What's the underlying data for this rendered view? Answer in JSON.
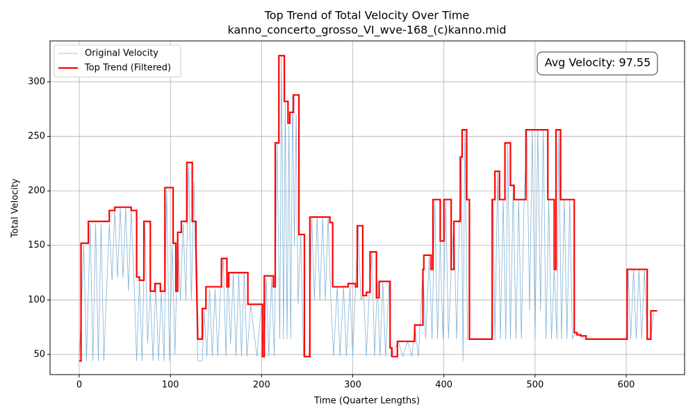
{
  "chart_data": {
    "type": "line",
    "title": "Top Trend of Total Velocity Over Time",
    "subtitle": "kanno_concerto_grosso_VI_wve-168_(c)kanno.mid",
    "xlabel": "Time (Quarter Lengths)",
    "ylabel": "Total Velocity",
    "annotation": "Avg Velocity: 97.55",
    "xlim": [
      -32,
      664
    ],
    "ylim": [
      31.5,
      337.5
    ],
    "xticks": [
      0,
      100,
      200,
      300,
      400,
      500,
      600
    ],
    "yticks": [
      50,
      100,
      150,
      200,
      250,
      300
    ],
    "grid": true,
    "legend": "upper left",
    "series": [
      {
        "name": "Original Velocity",
        "color": "#7fb2d8",
        "width": 0.8,
        "x": [
          0,
          5,
          8,
          12,
          15,
          18,
          21,
          24,
          27,
          30,
          33,
          36,
          39,
          42,
          45,
          48,
          51,
          54,
          57,
          60,
          63,
          66,
          69,
          72,
          75,
          78,
          81,
          84,
          87,
          90,
          93,
          96,
          99,
          102,
          105,
          108,
          111,
          114,
          117,
          120,
          123,
          126,
          128,
          130,
          135,
          137,
          140,
          143,
          146,
          149,
          152,
          155,
          158,
          161,
          163,
          166,
          169,
          172,
          175,
          178,
          181,
          184,
          188,
          195,
          200,
          203,
          205,
          208,
          211,
          214,
          217,
          220,
          222,
          224,
          226,
          228,
          230,
          232,
          234,
          236,
          238,
          240,
          243,
          246,
          252,
          255,
          258,
          261,
          264,
          267,
          270,
          273,
          276,
          279,
          283,
          286,
          290,
          293,
          297,
          300,
          303,
          306,
          309,
          312,
          315,
          318,
          321,
          324,
          327,
          330,
          333,
          336,
          340,
          342,
          350,
          355,
          360,
          365,
          368,
          372,
          377,
          380,
          384,
          387,
          390,
          393,
          396,
          399,
          402,
          405,
          408,
          411,
          414,
          417,
          419,
          421,
          423,
          426,
          430,
          452,
          454,
          456,
          459,
          462,
          465,
          468,
          470,
          473,
          476,
          479,
          482,
          485,
          488,
          491,
          494,
          497,
          500,
          503,
          506,
          509,
          512,
          515,
          518,
          521,
          524,
          526,
          529,
          532,
          535,
          538,
          541,
          544,
          556,
          600,
          602,
          605,
          608,
          611,
          614,
          617,
          620,
          623,
          627,
          630,
          634
        ],
        "values": [
          44,
          150,
          44,
          170,
          44,
          170,
          44,
          170,
          44,
          108,
          170,
          118,
          182,
          120,
          185,
          120,
          185,
          108,
          182,
          120,
          44,
          118,
          44,
          170,
          60,
          108,
          44,
          115,
          44,
          108,
          44,
          200,
          44,
          150,
          50,
          160,
          100,
          170,
          100,
          225,
          100,
          208,
          120,
          44,
          44,
          90,
          48,
          110,
          48,
          110,
          48,
          110,
          138,
          48,
          125,
          60,
          125,
          48,
          125,
          48,
          125,
          48,
          96,
          48,
          96,
          48,
          120,
          48,
          120,
          48,
          244,
          64,
          324,
          64,
          280,
          64,
          260,
          64,
          288,
          150,
          270,
          96,
          160,
          48,
          48,
          176,
          100,
          176,
          100,
          176,
          100,
          176,
          100,
          48,
          112,
          48,
          112,
          48,
          112,
          48,
          112,
          168,
          100,
          104,
          48,
          104,
          144,
          48,
          117,
          48,
          117,
          48,
          117,
          48,
          62,
          48,
          62,
          48,
          77,
          48,
          128,
          64,
          141,
          64,
          192,
          64,
          154,
          64,
          192,
          64,
          128,
          172,
          64,
          172,
          230,
          44,
          256,
          64,
          64,
          64,
          192,
          64,
          218,
          64,
          192,
          64,
          244,
          64,
          205,
          64,
          192,
          64,
          192,
          256,
          90,
          256,
          64,
          256,
          90,
          256,
          64,
          192,
          64,
          128,
          64,
          256,
          64,
          192,
          64,
          192,
          64,
          70,
          64,
          64,
          128,
          64,
          128,
          64,
          128,
          64,
          128,
          64,
          64,
          90,
          90
        ]
      },
      {
        "name": "Top Trend (Filtered)",
        "color": "#ff0000",
        "width": 2.2,
        "x": [
          0,
          2,
          2,
          10,
          10,
          33,
          33,
          39,
          39,
          57,
          57,
          63,
          63,
          66,
          66,
          71,
          71,
          78,
          78,
          83,
          83,
          89,
          89,
          94,
          94,
          103,
          103,
          106,
          106,
          108,
          108,
          112,
          112,
          118,
          118,
          124,
          124,
          128,
          128,
          130,
          135,
          135,
          139,
          139,
          156,
          156,
          162,
          162,
          164,
          164,
          185,
          185,
          201,
          201,
          203,
          203,
          213,
          213,
          215,
          215,
          219,
          219,
          225,
          225,
          229,
          229,
          231,
          231,
          235,
          235,
          241,
          241,
          247,
          247,
          253,
          253,
          275,
          275,
          278,
          278,
          295,
          295,
          303,
          303,
          305,
          305,
          311,
          311,
          315,
          315,
          319,
          319,
          326,
          326,
          329,
          329,
          341,
          341,
          343,
          343,
          349,
          349,
          368,
          368,
          377,
          377,
          378,
          378,
          386,
          386,
          388,
          388,
          396,
          396,
          400,
          400,
          408,
          408,
          411,
          411,
          418,
          418,
          420,
          420,
          425,
          425,
          428,
          428,
          453,
          453,
          456,
          456,
          461,
          461,
          467,
          467,
          473,
          473,
          477,
          477,
          490,
          490,
          514,
          514,
          521,
          521,
          523,
          523,
          528,
          528,
          543,
          543,
          546,
          546,
          550,
          550,
          556,
          556,
          601,
          601,
          623,
          623,
          627,
          627,
          634
        ],
        "values": [
          44,
          44,
          152,
          152,
          172,
          172,
          182,
          182,
          185,
          185,
          182,
          182,
          121,
          121,
          118,
          118,
          172,
          172,
          108,
          108,
          115,
          115,
          108,
          108,
          203,
          203,
          152,
          152,
          108,
          108,
          162,
          162,
          172,
          172,
          226,
          226,
          172,
          172,
          152,
          64,
          64,
          92,
          92,
          112,
          112,
          138,
          138,
          112,
          112,
          125,
          125,
          96,
          96,
          48,
          48,
          122,
          122,
          112,
          112,
          244,
          244,
          324,
          324,
          282,
          282,
          262,
          262,
          272,
          272,
          288,
          288,
          160,
          160,
          48,
          48,
          176,
          176,
          171,
          171,
          112,
          112,
          115,
          115,
          112,
          112,
          168,
          168,
          104,
          104,
          107,
          107,
          144,
          144,
          102,
          102,
          117,
          117,
          56,
          56,
          48,
          48,
          62,
          62,
          77,
          77,
          128,
          128,
          141,
          141,
          128,
          128,
          192,
          192,
          154,
          154,
          192,
          192,
          128,
          128,
          172,
          172,
          231,
          231,
          256,
          256,
          192,
          192,
          64,
          64,
          192,
          192,
          218,
          218,
          192,
          192,
          244,
          244,
          205,
          205,
          192,
          192,
          256,
          256,
          192,
          192,
          128,
          128,
          256,
          256,
          192,
          192,
          70,
          70,
          68,
          68,
          67,
          67,
          64,
          64,
          128,
          128,
          64,
          64,
          90,
          90
        ]
      }
    ]
  }
}
